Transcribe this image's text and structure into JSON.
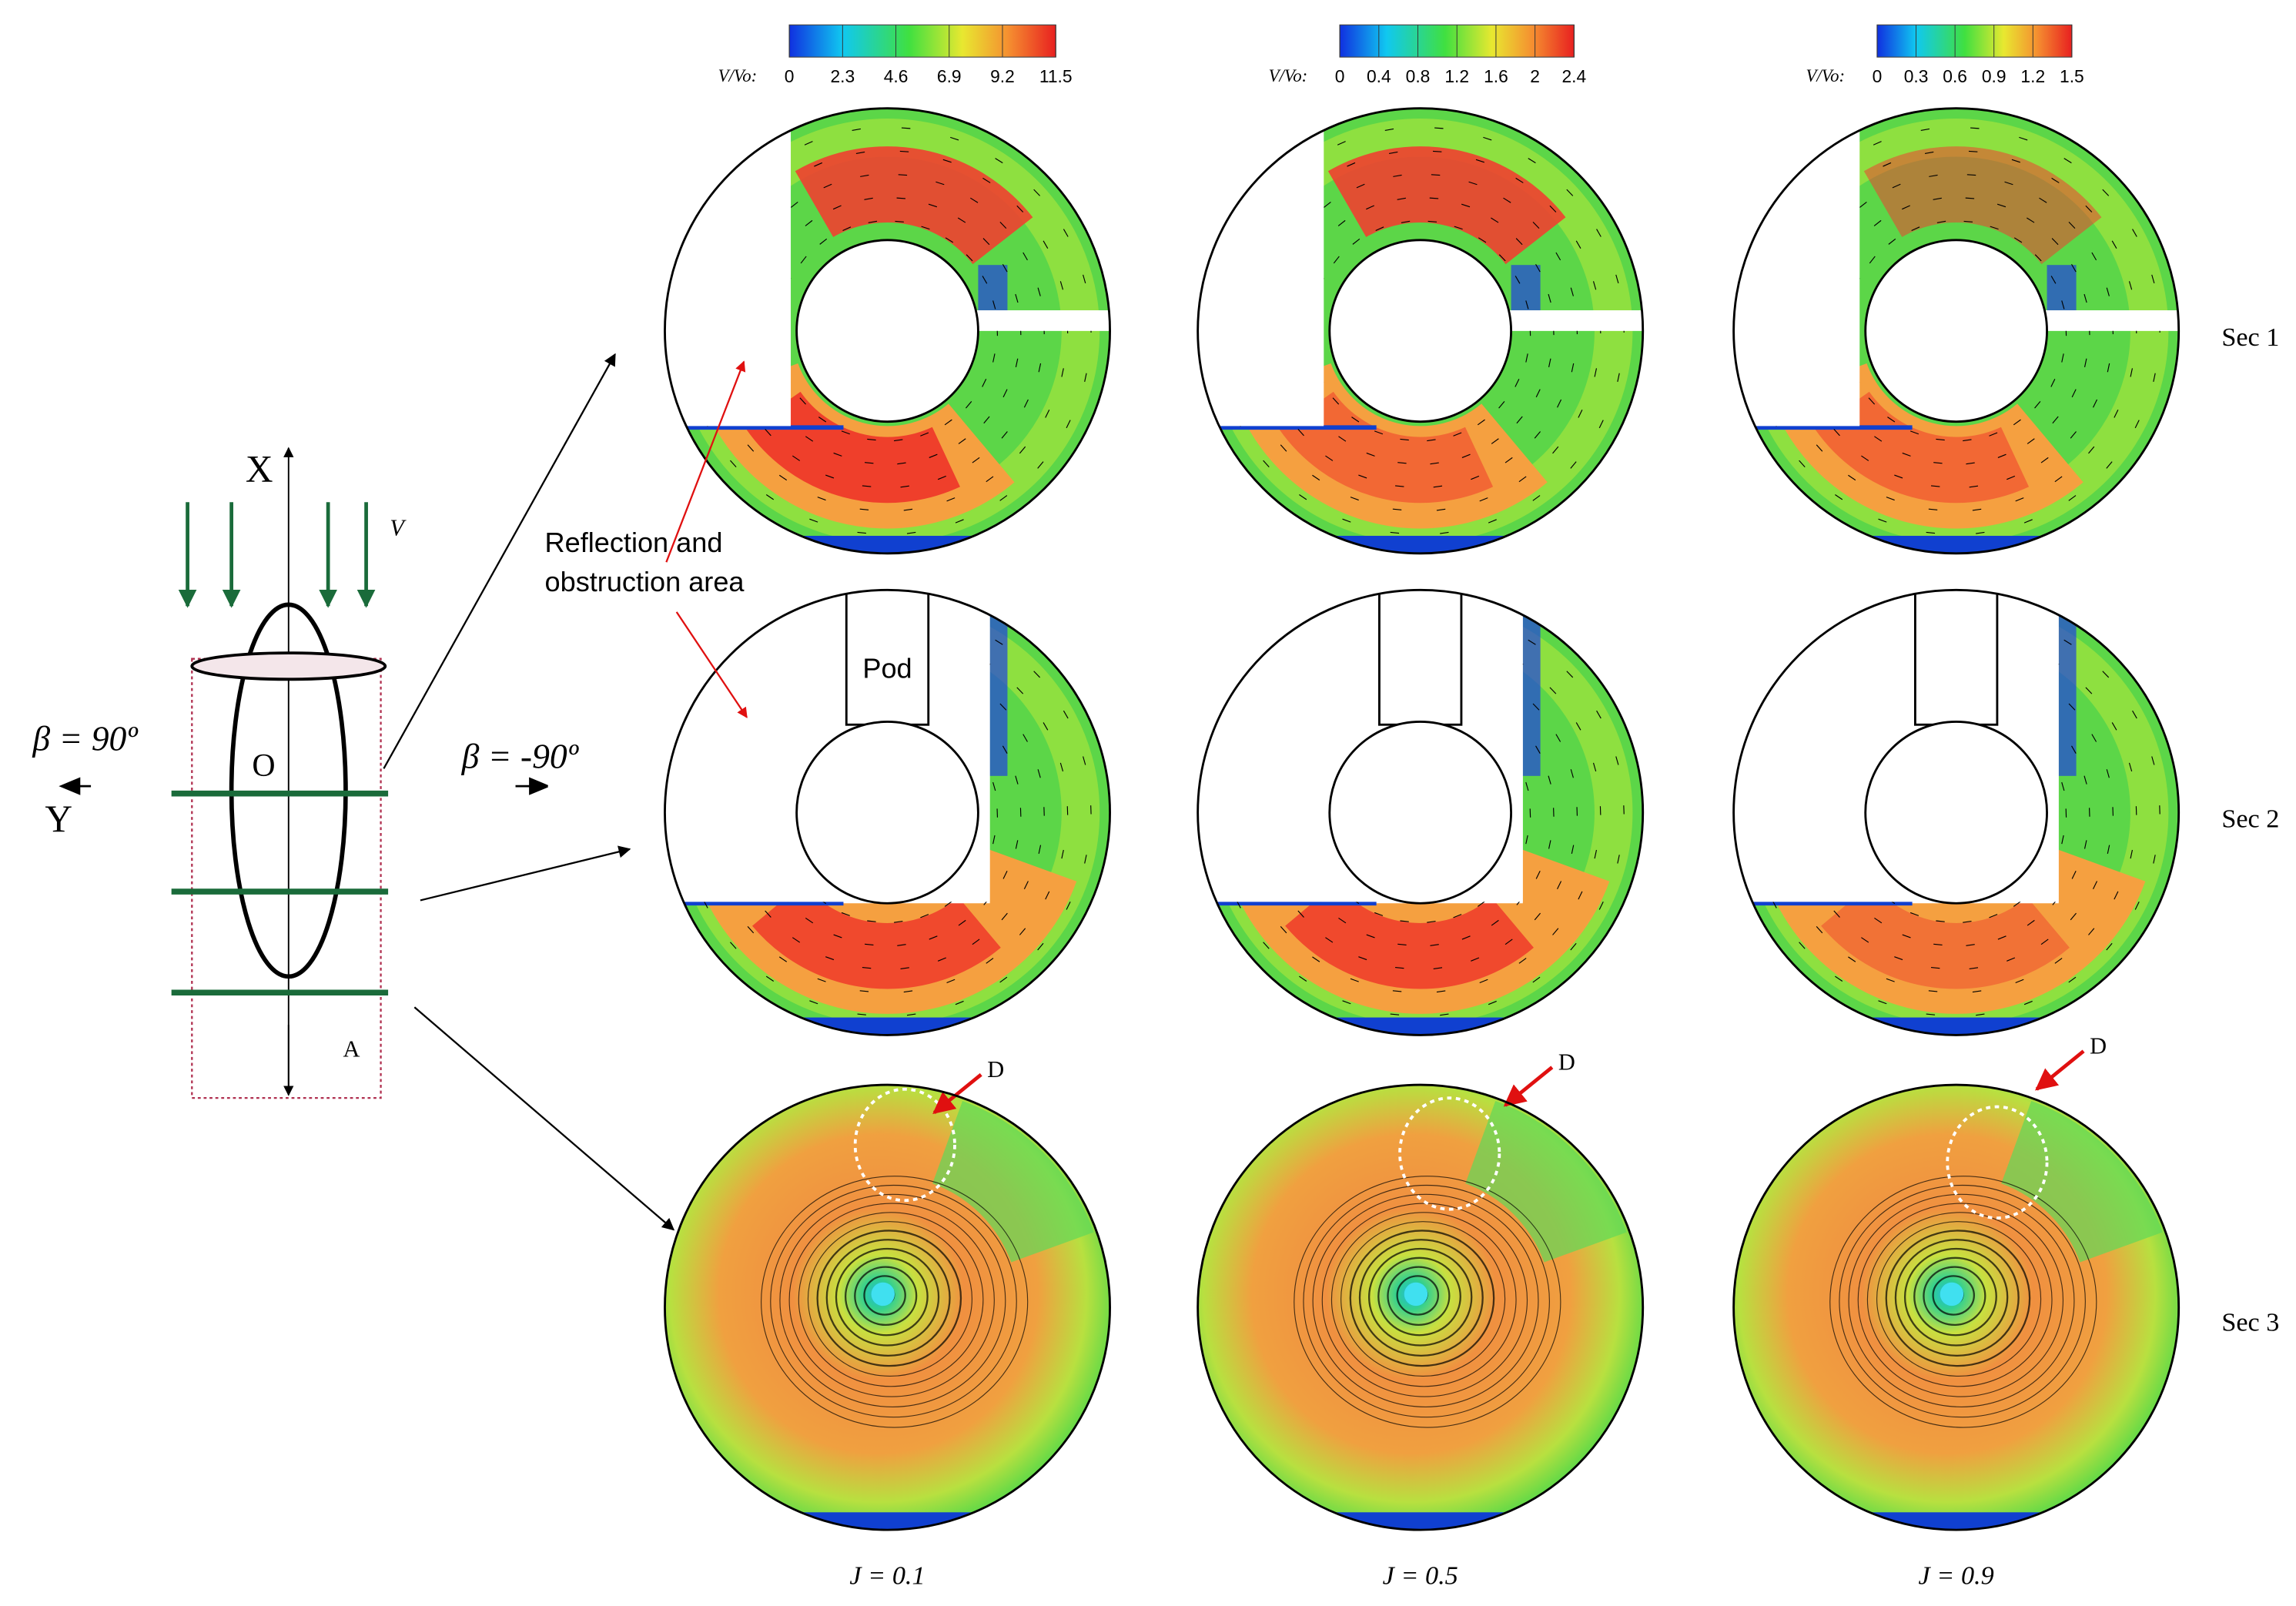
{
  "colorbars": [
    {
      "label": "V/Vo:",
      "ticks": [
        0,
        2.3,
        4.6,
        6.9,
        9.2,
        11.5
      ]
    },
    {
      "label": "V/Vo:",
      "ticks": [
        0,
        0.4,
        0.8,
        1.2,
        1.6,
        2,
        2.4
      ]
    },
    {
      "label": "V/Vo:",
      "ticks": [
        0,
        0.3,
        0.6,
        0.9,
        1.2,
        1.5
      ]
    }
  ],
  "sections": [
    "Sec 1",
    "Sec 2",
    "Sec 3"
  ],
  "columns": [
    "J = 0.1",
    "J = 0.5",
    "J = 0.9"
  ],
  "pod_label": "Pod",
  "d_labels": [
    "D",
    "D",
    "D"
  ],
  "annotation": [
    "Reflection and",
    "obstruction area"
  ],
  "diagram": {
    "x_axis": "X",
    "y_axis": "Y",
    "velocity": "V",
    "origin": "O",
    "point": "A",
    "beta_left": "β = 90º",
    "beta_right": "β = -90º"
  }
}
